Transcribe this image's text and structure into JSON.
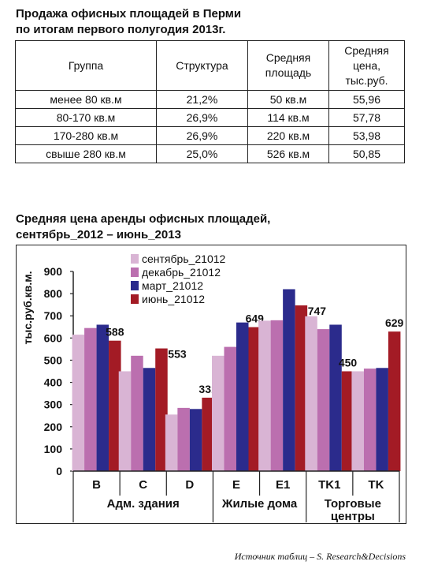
{
  "table1": {
    "title_line1": "Продажа офисных площадей в Перми",
    "title_line2": "по итогам первого полугодия 2013г.",
    "headers": [
      "Группа",
      "Структура",
      "Средняя площадь",
      "Средняя цена, тыс.руб."
    ],
    "rows": [
      [
        "менее 80 кв.м",
        "21,2%",
        "50 кв.м",
        "55,96"
      ],
      [
        "80-170 кв.м",
        "26,9%",
        "114 кв.м",
        "57,78"
      ],
      [
        "170-280 кв.м",
        "26,9%",
        "220 кв.м",
        "53,98"
      ],
      [
        "свыше 280 кв.м",
        "25,0%",
        "526 кв.м",
        "50,85"
      ]
    ]
  },
  "chart_title": {
    "line1": "Средняя цена аренды офисных площадей,",
    "line2": "сентябрь_2012 – июнь_2013"
  },
  "chart_data": {
    "type": "bar",
    "title": "Средняя цена аренды офисных площадей, сентябрь_2012 – июнь_2013",
    "ylabel": "тыс.руб.кв.м.",
    "ylim": [
      0,
      900
    ],
    "yticks": [
      "0",
      "100",
      "200",
      "300",
      "400",
      "500",
      "600",
      "700",
      "800",
      "900"
    ],
    "categories": [
      "B",
      "C",
      "D",
      "E",
      "E1",
      "TK1",
      "TK"
    ],
    "groups": [
      {
        "label": "Адм. здания"
      },
      {
        "label": "Жилые дома"
      },
      {
        "label": "Торговые центры"
      }
    ],
    "legend_placement": "top-left",
    "series": [
      {
        "name": "сентябрь_21012",
        "color": "#d9b4d4",
        "values": [
          615,
          450,
          255,
          520,
          678,
          698,
          450
        ]
      },
      {
        "name": "декабрь_21012",
        "color": "#bb6faf",
        "values": [
          645,
          520,
          285,
          560,
          680,
          640,
          462
        ]
      },
      {
        "name": "март_21012",
        "color": "#2b2b8c",
        "values": [
          660,
          465,
          280,
          670,
          820,
          660,
          465
        ]
      },
      {
        "name": "июнь_21012",
        "color": "#a31b25",
        "values": [
          588,
          553,
          331,
          649,
          747,
          450,
          629
        ]
      }
    ],
    "data_labels": [
      "588",
      "553",
      "331",
      "649",
      "747",
      "450",
      "629"
    ]
  },
  "source_note": "Источник таблиц – S. Research&Decisions"
}
